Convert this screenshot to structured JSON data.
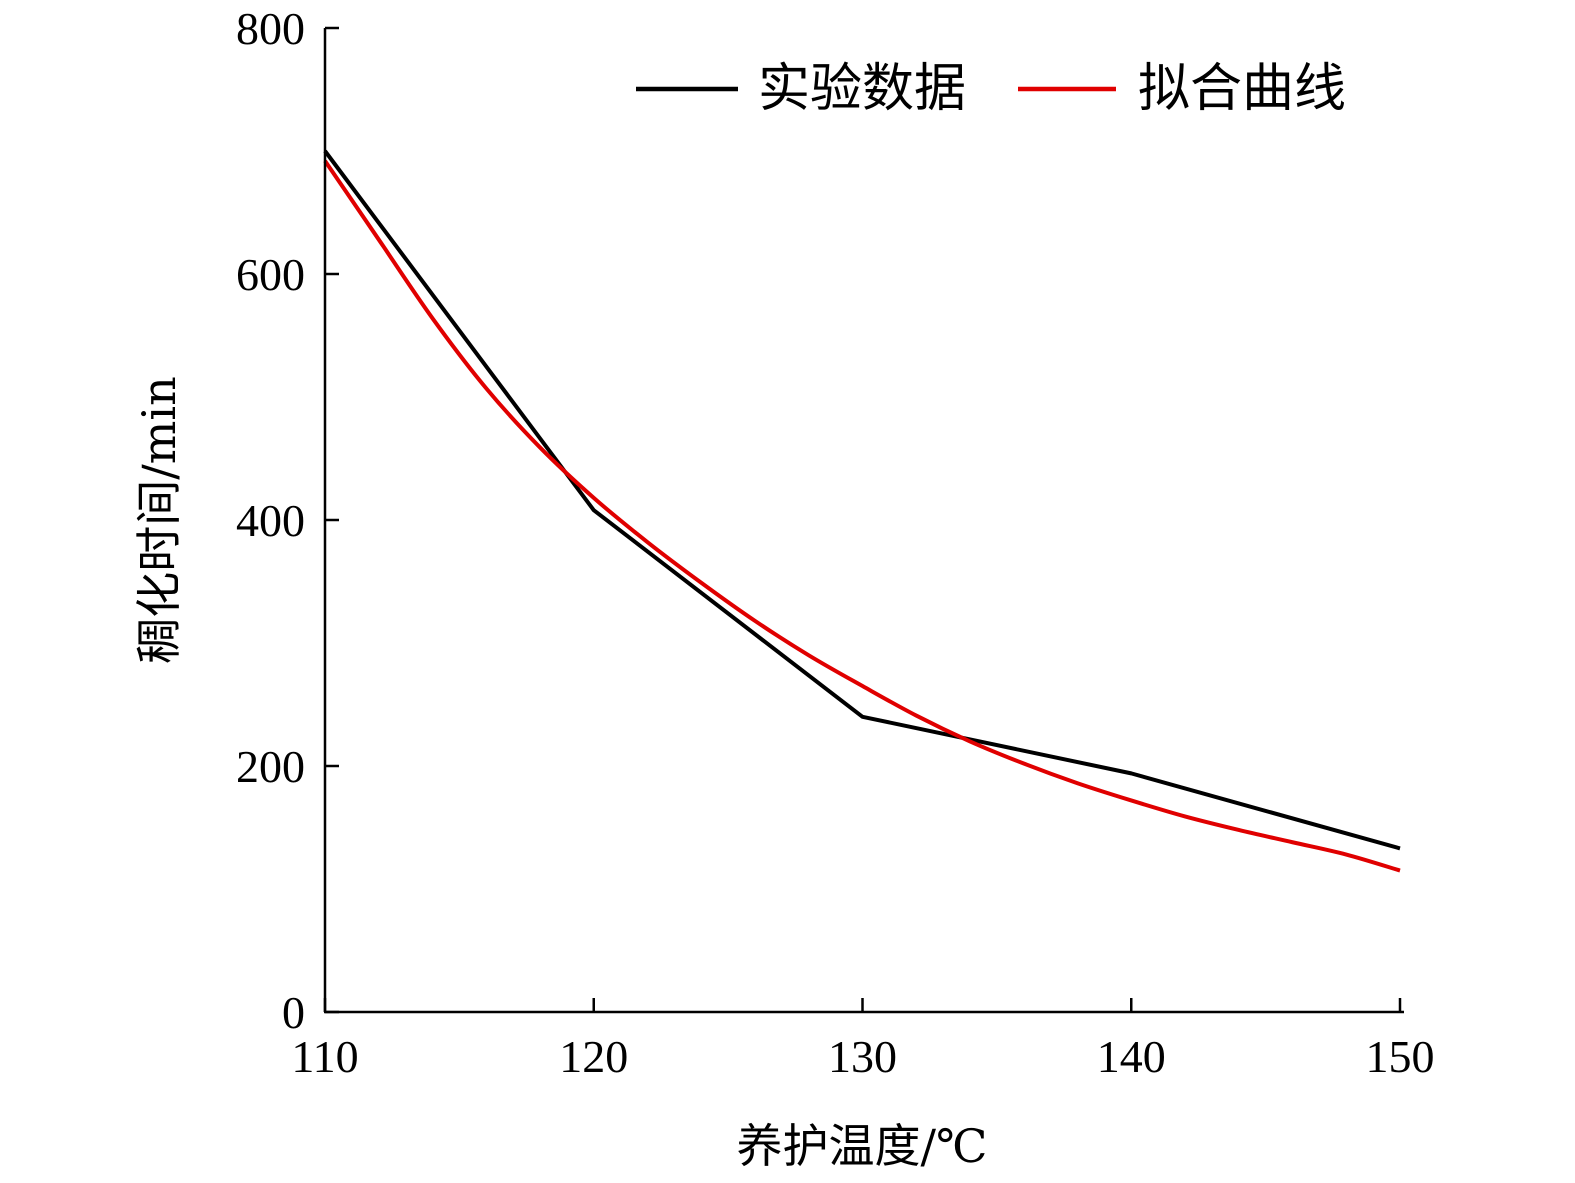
{
  "chart_data": {
    "type": "line",
    "title": "",
    "xlabel": "养护温度/℃",
    "ylabel": "稠化时间/min",
    "xlim": [
      110,
      150
    ],
    "ylim": [
      0,
      800
    ],
    "xticks": [
      110,
      120,
      130,
      140,
      150
    ],
    "yticks": [
      0,
      200,
      400,
      600,
      800
    ],
    "grid": false,
    "legend_position": "top-right",
    "series": [
      {
        "name": "实验数据",
        "color": "#000000",
        "x": [
          110,
          120,
          130,
          140,
          150
        ],
        "y": [
          700,
          408,
          240,
          194,
          133
        ]
      },
      {
        "name": "拟合曲线",
        "color": "#e00000",
        "x": [
          110,
          112,
          114,
          116,
          118,
          120,
          122,
          124,
          126,
          128,
          130,
          132,
          134,
          136,
          138,
          140,
          142,
          144,
          146,
          148,
          150
        ],
        "y": [
          692,
          628,
          564,
          507,
          459,
          418,
          382,
          349,
          318,
          290,
          265,
          241,
          220,
          202,
          186,
          172,
          159,
          148,
          138,
          128,
          115
        ]
      }
    ]
  }
}
